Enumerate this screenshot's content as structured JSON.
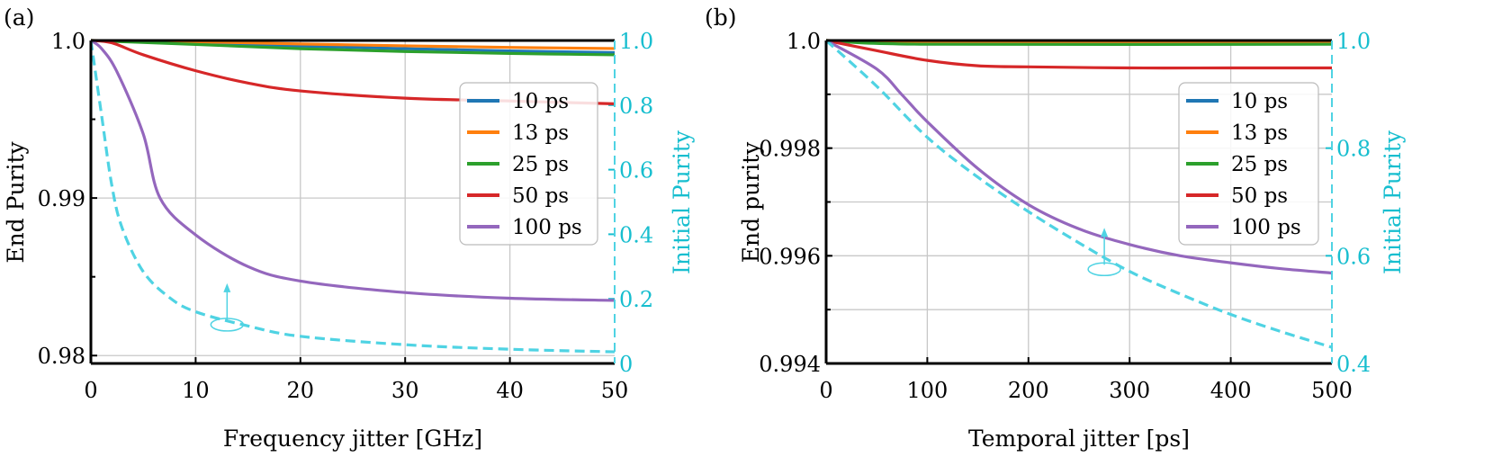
{
  "colors": {
    "10 ps": "#1f77b4",
    "13 ps": "#ff7f0e",
    "25 ps": "#2ca02c",
    "50 ps": "#d62728",
    "100 ps": "#9467bd",
    "initial": "#17becf",
    "initial_line": "#4fd3e3"
  },
  "chart_data": [
    {
      "panel_label": "(a)",
      "type": "line",
      "xlabel": "Frequency jitter [GHz]",
      "ylabel": "End Purity",
      "ylabel_right": "Initial Purity",
      "xlim": [
        0,
        50
      ],
      "ylim": [
        0.9795,
        1.0
      ],
      "ylim_right": [
        0,
        1
      ],
      "xticks": [
        "0",
        "10",
        "20",
        "30",
        "40",
        "50"
      ],
      "yticks": [
        "0.98",
        "0.99",
        "1.0"
      ],
      "yticks_right": [
        "0",
        "0.2",
        "0.4",
        "0.6",
        "0.8",
        "1.0"
      ],
      "grid": true,
      "legend_position": "right",
      "series": [
        {
          "name": "10 ps",
          "x": [
            0,
            10,
            20,
            30,
            40,
            50
          ],
          "y": [
            1.0,
            0.99985,
            0.99965,
            0.99948,
            0.99934,
            0.99923
          ]
        },
        {
          "name": "13 ps",
          "x": [
            0,
            10,
            20,
            30,
            40,
            50
          ],
          "y": [
            1.0,
            0.99992,
            0.99978,
            0.99966,
            0.99956,
            0.99949
          ]
        },
        {
          "name": "25 ps",
          "x": [
            0,
            10,
            20,
            30,
            40,
            50
          ],
          "y": [
            1.0,
            0.99975,
            0.99948,
            0.9993,
            0.99918,
            0.99909
          ]
        },
        {
          "name": "50 ps",
          "x": [
            0,
            2,
            5,
            10,
            15,
            20,
            30,
            40,
            50
          ],
          "y": [
            1.0,
            0.99985,
            0.99909,
            0.99808,
            0.9973,
            0.9968,
            0.99634,
            0.99616,
            0.99598
          ]
        },
        {
          "name": "100 ps",
          "x": [
            0,
            1,
            2.5,
            5,
            6.6,
            10,
            15,
            20,
            30,
            40,
            50
          ],
          "y": [
            1.0,
            0.9995,
            0.998,
            0.99406,
            0.99,
            0.98766,
            0.98565,
            0.98473,
            0.984,
            0.98364,
            0.9835
          ]
        },
        {
          "name": "Initial Purity",
          "axis": "right",
          "style": "dashed",
          "x": [
            0,
            1,
            2,
            3,
            5,
            7.5,
            10,
            15,
            20,
            30,
            40,
            50
          ],
          "y": [
            1.0,
            0.773,
            0.551,
            0.418,
            0.284,
            0.204,
            0.16,
            0.116,
            0.084,
            0.058,
            0.044,
            0.036
          ]
        }
      ],
      "annotation": {
        "x": 13,
        "y_right": 0.12,
        "arrow": "up"
      }
    },
    {
      "panel_label": "(b)",
      "type": "line",
      "xlabel": "Temporal jitter [ps]",
      "ylabel": "End purity",
      "ylabel_right": "Initial Purity",
      "xlim": [
        0,
        500
      ],
      "ylim": [
        0.994,
        1.0
      ],
      "ylim_right": [
        0.4,
        1.0
      ],
      "xticks": [
        "0",
        "100",
        "200",
        "300",
        "400",
        "500"
      ],
      "yticks": [
        "0.994",
        "0.996",
        "0.998",
        "1.0"
      ],
      "yticks_right": [
        "0.4",
        "0.6",
        "0.8",
        "1.0"
      ],
      "grid": true,
      "legend_position": "right",
      "series": [
        {
          "name": "10 ps",
          "x": [
            0,
            100,
            500
          ],
          "y": [
            1.0,
            0.99996,
            0.99995
          ]
        },
        {
          "name": "13 ps",
          "x": [
            0,
            100,
            500
          ],
          "y": [
            1.0,
            0.99998,
            0.99998
          ]
        },
        {
          "name": "25 ps",
          "x": [
            0,
            100,
            500
          ],
          "y": [
            1.0,
            0.99993,
            0.99993
          ]
        },
        {
          "name": "50 ps",
          "x": [
            0,
            50,
            100,
            150,
            200,
            300,
            400,
            500
          ],
          "y": [
            1.0,
            0.99981,
            0.99963,
            0.99953,
            0.99951,
            0.99949,
            0.99949,
            0.99949
          ]
        },
        {
          "name": "100 ps",
          "x": [
            0,
            50,
            75,
            100,
            150,
            200,
            250,
            300,
            350,
            400,
            450,
            500
          ],
          "y": [
            1.0,
            0.99947,
            0.99899,
            0.99849,
            0.99762,
            0.99695,
            0.9965,
            0.99621,
            0.996,
            0.99587,
            0.99576,
            0.99568
          ]
        },
        {
          "name": "Initial Purity",
          "axis": "right",
          "style": "dashed",
          "x": [
            0,
            50,
            100,
            150,
            200,
            250,
            300,
            350,
            400,
            450,
            500
          ],
          "y": [
            1.0,
            0.915,
            0.82,
            0.746,
            0.682,
            0.624,
            0.571,
            0.529,
            0.491,
            0.459,
            0.43
          ]
        }
      ],
      "annotation": {
        "x": 275,
        "y_right": 0.575,
        "arrow": "up"
      }
    }
  ]
}
